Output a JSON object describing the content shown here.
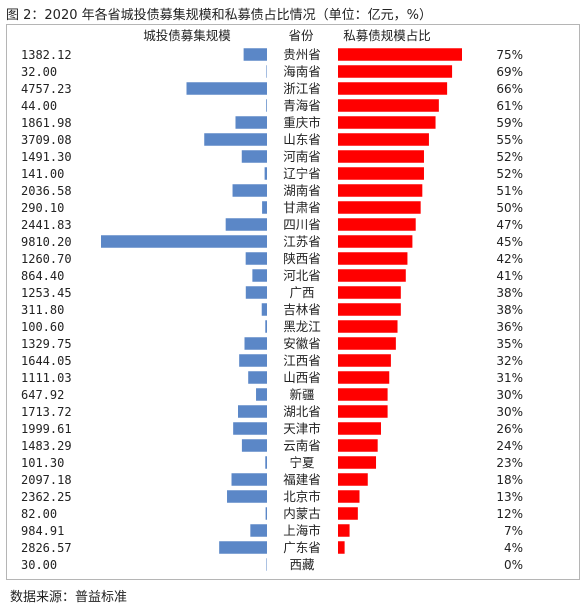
{
  "title": "图 2：2020 年各省城投债募集规模和私募债占比情况（单位：亿元，%）",
  "source": "数据来源：普益标准",
  "colors": {
    "left_bar": "#5b87c7",
    "right_bar": "#ff0000"
  },
  "chart_data": {
    "type": "bar",
    "headers": {
      "left": "城投债募集规模",
      "middle": "省份",
      "right": "私募债规模占比"
    },
    "categories": [
      "贵州省",
      "海南省",
      "浙江省",
      "青海省",
      "重庆市",
      "山东省",
      "河南省",
      "辽宁省",
      "湖南省",
      "甘肃省",
      "四川省",
      "江苏省",
      "陕西省",
      "河北省",
      "广西",
      "吉林省",
      "黑龙江",
      "安徽省",
      "江西省",
      "山西省",
      "新疆",
      "湖北省",
      "天津市",
      "云南省",
      "宁夏",
      "福建省",
      "北京市",
      "内蒙古",
      "上海市",
      "广东省",
      "西藏"
    ],
    "issuance_labels": [
      "1382.12",
      "32.00",
      "4757.23",
      "44.00",
      "1861.98",
      "3709.08",
      "1491.30",
      "141.00",
      "2036.58",
      "290.10",
      "2441.83",
      "9810.20",
      "1260.70",
      "864.40",
      "1253.45",
      "311.80",
      "100.60",
      "1329.75",
      "1644.05",
      "1111.03",
      "647.92",
      "1713.72",
      "1999.61",
      "1483.29",
      "101.30",
      "2097.18",
      "2362.25",
      "82.00",
      "984.91",
      "2826.57",
      "30.00"
    ],
    "issuance": [
      1382.12,
      32.0,
      4757.23,
      44.0,
      1861.98,
      3709.08,
      1491.3,
      141.0,
      2036.58,
      290.1,
      2441.83,
      9810.2,
      1260.7,
      864.4,
      1253.45,
      311.8,
      100.6,
      1329.75,
      1644.05,
      1111.03,
      647.92,
      1713.72,
      1999.61,
      1483.29,
      101.3,
      2097.18,
      2362.25,
      82.0,
      984.91,
      2826.57,
      30.0
    ],
    "private_share_labels": [
      "75%",
      "69%",
      "66%",
      "61%",
      "59%",
      "55%",
      "52%",
      "52%",
      "51%",
      "50%",
      "47%",
      "45%",
      "42%",
      "41%",
      "38%",
      "38%",
      "36%",
      "35%",
      "32%",
      "31%",
      "30%",
      "30%",
      "26%",
      "24%",
      "23%",
      "18%",
      "13%",
      "12%",
      "7%",
      "4%",
      "0%"
    ],
    "private_share": [
      75,
      69,
      66,
      61,
      59,
      55,
      52,
      52,
      51,
      50,
      47,
      45,
      42,
      41,
      38,
      38,
      36,
      35,
      32,
      31,
      30,
      30,
      26,
      24,
      23,
      18,
      13,
      12,
      7,
      4,
      0
    ]
  }
}
